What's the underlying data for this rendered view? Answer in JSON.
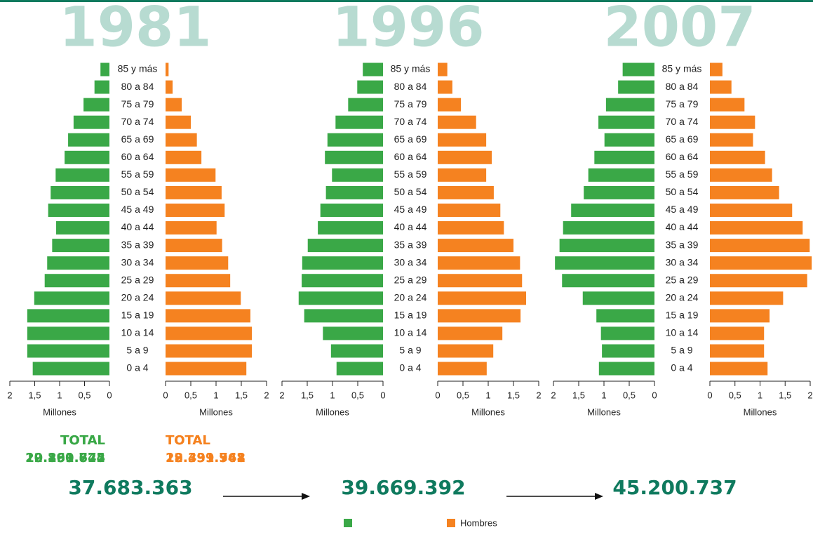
{
  "chart_data": [
    {
      "type": "pyramid",
      "title": "1981",
      "categories": [
        "85 y más",
        "80 a 84",
        "75 a 79",
        "70 a 74",
        "65 a 69",
        "60 a 64",
        "55 a 59",
        "50 a 54",
        "45 a 49",
        "40 a 44",
        "35 a 39",
        "30 a 34",
        "25 a 29",
        "20 a 24",
        "15 a 19",
        "10 a 14",
        "5 a 9",
        "0 a 4"
      ],
      "series": [
        {
          "color": "#3aa847",
          "xlim": [
            2,
            0
          ],
          "xticks": [
            2,
            {
              "value": 1.5,
              "label": "1,5"
            },
            1,
            {
              "value": 0.5,
              "label": "0,5"
            },
            0
          ],
          "xlabel": "Millones",
          "total_label": "TOTAL",
          "total": {
            "value": 19191622,
            "label": "19.191.622"
          },
          "values": [
            0.18,
            0.3,
            0.52,
            0.72,
            0.83,
            0.9,
            1.08,
            1.18,
            1.23,
            1.07,
            1.15,
            1.25,
            1.3,
            1.51,
            1.65,
            1.65,
            1.65,
            1.54
          ]
        },
        {
          "name": "Hombres",
          "color": "#f58220",
          "xlim": [
            0,
            2
          ],
          "xticks": [
            0,
            {
              "value": 0.5,
              "label": "0,5"
            },
            1,
            {
              "value": 1.5,
              "label": "1,5"
            },
            2
          ],
          "xlabel": "Millones",
          "total_label": "TOTAL",
          "total": {
            "value": 18491741,
            "label": "18.491.741"
          },
          "values": [
            0.06,
            0.14,
            0.32,
            0.5,
            0.62,
            0.71,
            0.99,
            1.11,
            1.17,
            1.01,
            1.12,
            1.24,
            1.28,
            1.49,
            1.68,
            1.71,
            1.71,
            1.6
          ]
        }
      ],
      "grand_total": {
        "value": 37683363,
        "label": "37.683.363"
      }
    },
    {
      "type": "pyramid",
      "title": "1996",
      "categories": [
        "85 y más",
        "80 a 84",
        "75 a 79",
        "70 a 74",
        "65 a 69",
        "60 a 64",
        "55 a 59",
        "50 a 54",
        "45 a 49",
        "40 a 44",
        "35 a 39",
        "30 a 34",
        "25 a 29",
        "20 a 24",
        "15 a 19",
        "10 a 14",
        "5 a 9",
        "0 a 4"
      ],
      "series": [
        {
          "color": "#3aa847",
          "xlim": [
            2,
            0
          ],
          "xticks": [
            2,
            {
              "value": 1.5,
              "label": "1,5"
            },
            1,
            {
              "value": 0.5,
              "label": "0,5"
            },
            0
          ],
          "xlabel": "Millones",
          "total_label": "TOTAL",
          "total": {
            "value": 20269844,
            "label": "20.269.844"
          },
          "values": [
            0.4,
            0.51,
            0.69,
            0.94,
            1.1,
            1.15,
            1.01,
            1.13,
            1.24,
            1.29,
            1.49,
            1.6,
            1.61,
            1.67,
            1.56,
            1.19,
            1.03,
            0.92
          ]
        },
        {
          "name": "Hombres",
          "color": "#f58220",
          "xlim": [
            0,
            2
          ],
          "xticks": [
            0,
            {
              "value": 0.5,
              "label": "0,5"
            },
            1,
            {
              "value": 1.5,
              "label": "1,5"
            },
            2
          ],
          "xlabel": "Millones",
          "total_label": "TOTAL",
          "total": {
            "value": 19399548,
            "label": "19.399.548"
          },
          "values": [
            0.19,
            0.29,
            0.46,
            0.76,
            0.96,
            1.07,
            0.96,
            1.11,
            1.24,
            1.31,
            1.5,
            1.63,
            1.67,
            1.75,
            1.64,
            1.28,
            1.1,
            0.97
          ]
        }
      ],
      "grand_total": {
        "value": 39669392,
        "label": "39.669.392"
      }
    },
    {
      "type": "pyramid",
      "title": "2007",
      "categories": [
        "85 y más",
        "80 a 84",
        "75 a 79",
        "70 a 74",
        "65 a 69",
        "60 a 64",
        "55 a 59",
        "50 a 54",
        "45 a 49",
        "40 a 44",
        "35 a 39",
        "30 a 34",
        "25 a 29",
        "20 a 24",
        "15 a 19",
        "10 a 14",
        "5 a 9",
        "0 a 4"
      ],
      "series": [
        {
          "color": "#3aa847",
          "xlim": [
            2,
            0
          ],
          "xticks": [
            2,
            {
              "value": 1.5,
              "label": "1,5"
            },
            1,
            {
              "value": 0.5,
              "label": "0,5"
            },
            0
          ],
          "xlabel": "Millones",
          "total_label": "TOTAL",
          "total": {
            "value": 22860775,
            "label": "22.860.775"
          },
          "values": [
            0.63,
            0.72,
            0.96,
            1.11,
            0.99,
            1.19,
            1.31,
            1.4,
            1.65,
            1.81,
            1.88,
            1.97,
            1.83,
            1.42,
            1.15,
            1.06,
            1.04,
            1.1
          ]
        },
        {
          "name": "Hombres",
          "color": "#f58220",
          "xlim": [
            0,
            2
          ],
          "xticks": [
            0,
            {
              "value": 0.5,
              "label": "0,5"
            },
            1,
            {
              "value": 1.5,
              "label": "1,5"
            },
            2
          ],
          "xlabel": "Millones",
          "total_label": "TOTAL",
          "total": {
            "value": 22339962,
            "label": "22.339.962"
          },
          "values": [
            0.25,
            0.43,
            0.69,
            0.9,
            0.86,
            1.1,
            1.24,
            1.38,
            1.64,
            1.85,
            1.99,
            2.03,
            1.94,
            1.46,
            1.19,
            1.08,
            1.08,
            1.15
          ]
        }
      ],
      "grand_total": {
        "value": 45200737,
        "label": "45.200.737"
      }
    }
  ]
}
